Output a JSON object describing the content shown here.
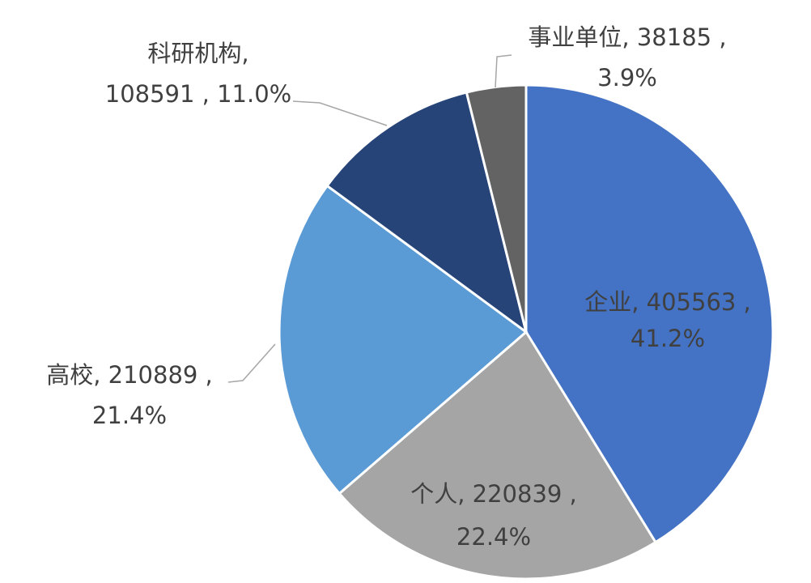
{
  "chart_data": {
    "type": "pie",
    "values": [
      405563,
      220839,
      210889,
      108591,
      38185
    ],
    "colors": [
      "#4472c4",
      "#a5a5a5",
      "#5b9bd5",
      "#264478",
      "#636363"
    ],
    "data_labels": [
      [
        "企业, 405563 ,",
        "41.2%"
      ],
      [
        "个人, 220839 ,",
        "22.4%"
      ],
      [
        "高校, 210889 ,",
        "21.4%"
      ],
      [
        "科研机构,",
        "108591 , 11.0%"
      ],
      [
        "事业单位, 38185 ,",
        "3.9%"
      ]
    ]
  }
}
